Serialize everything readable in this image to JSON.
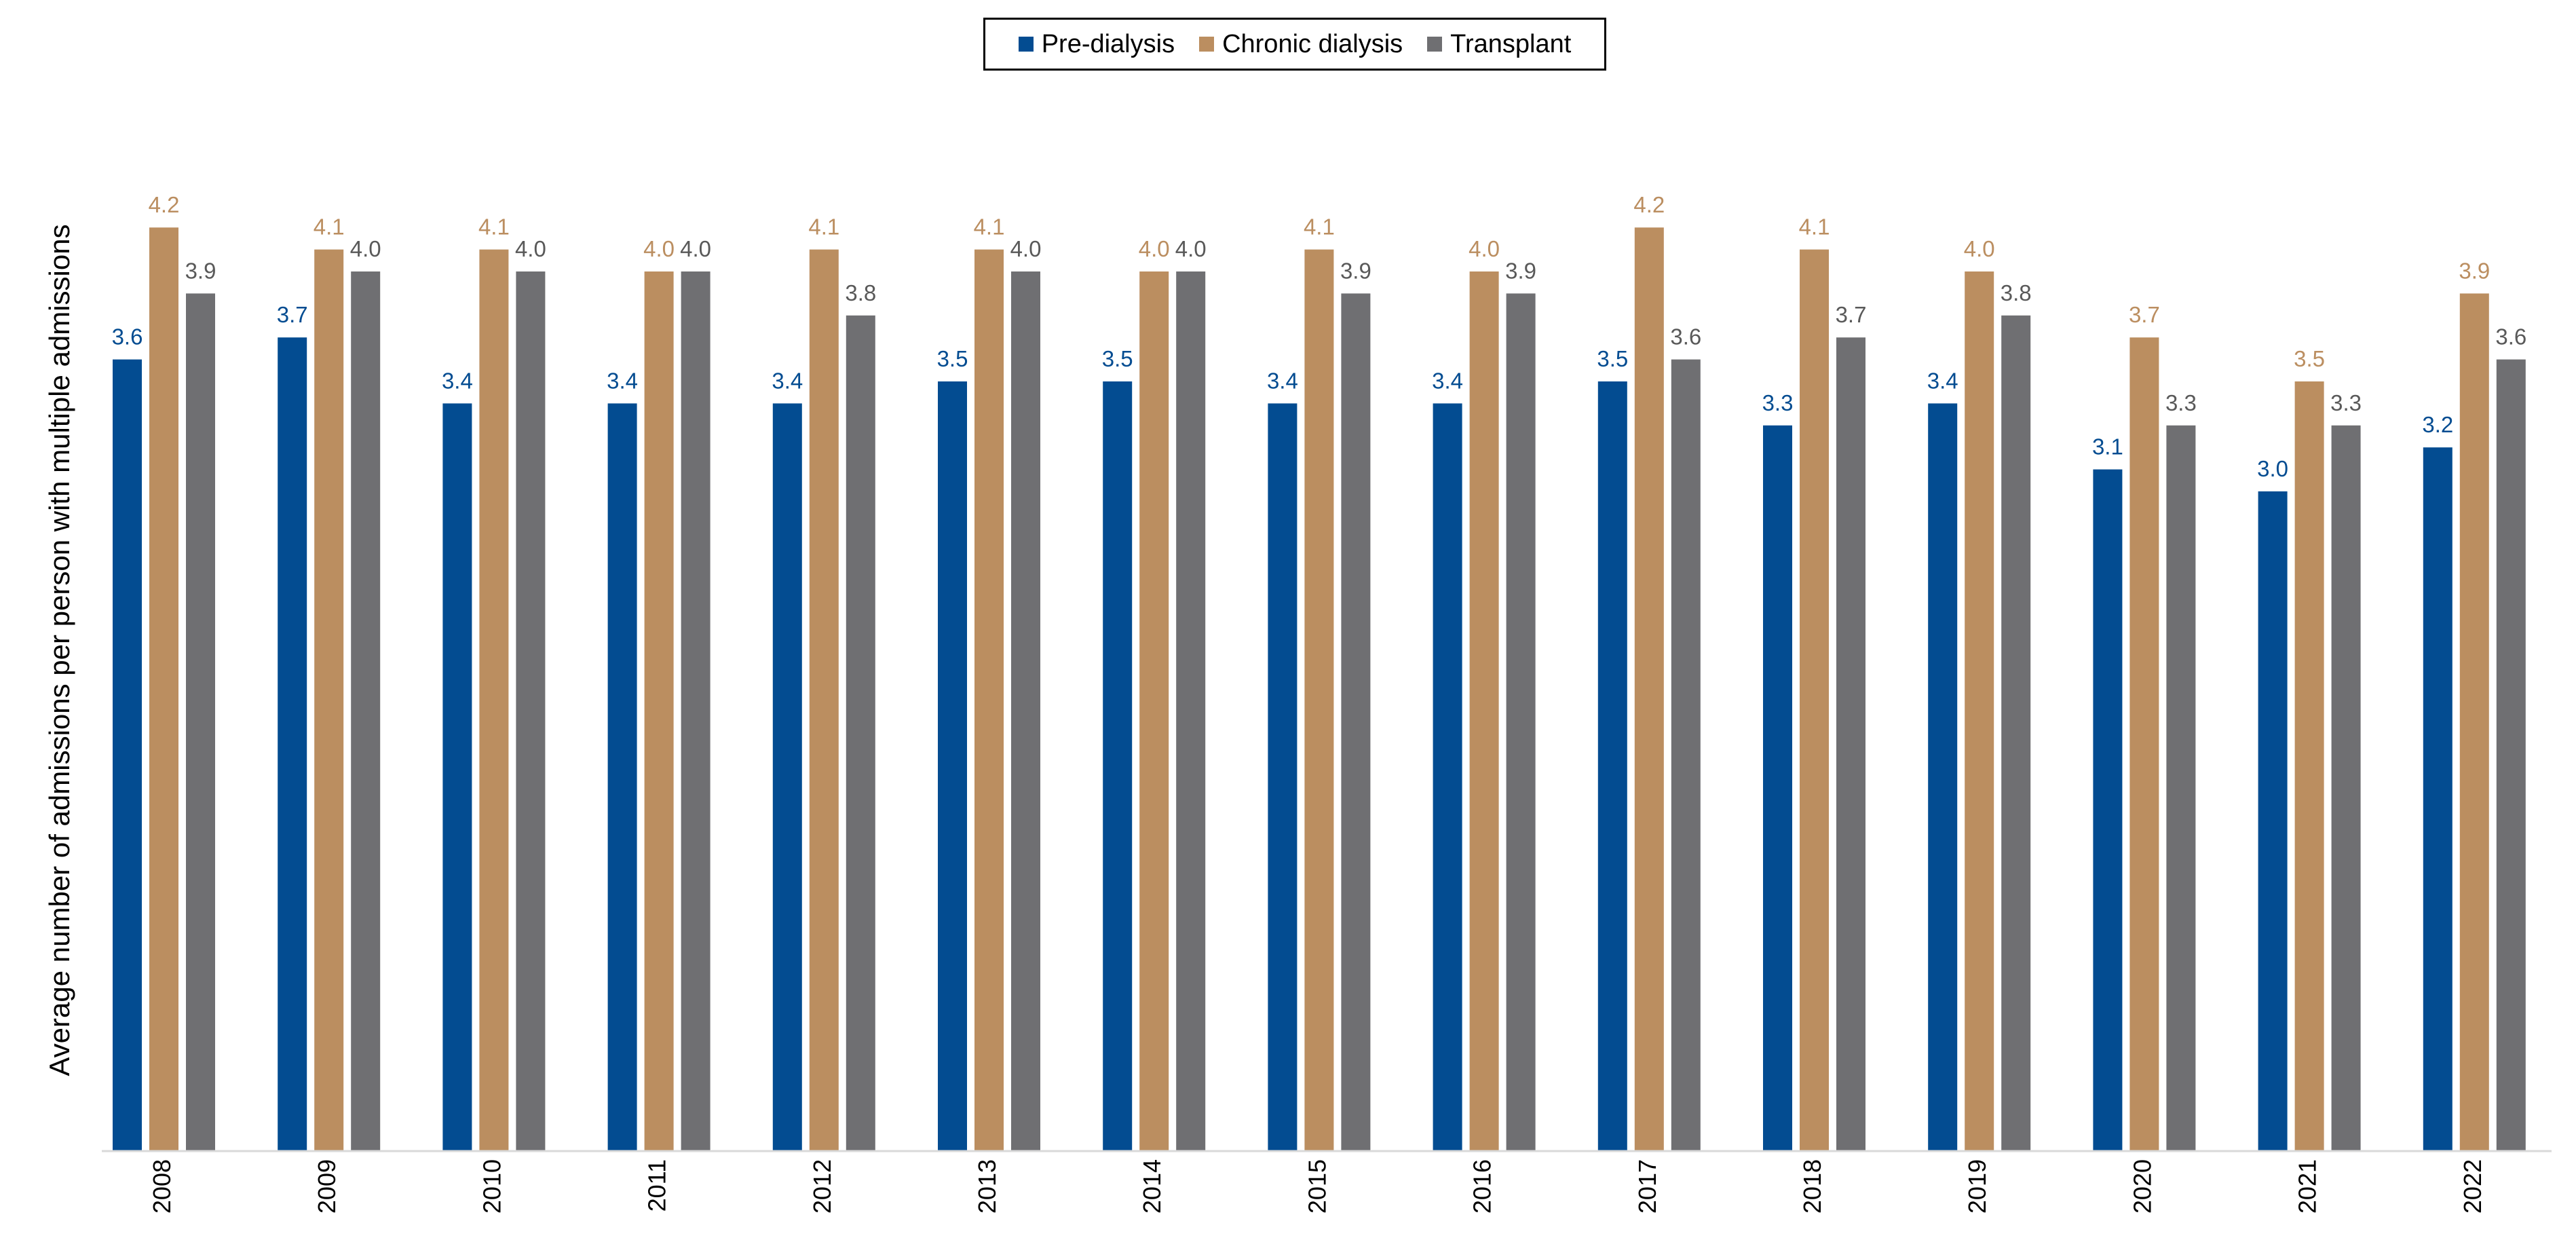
{
  "chart_data": {
    "type": "bar",
    "title": "",
    "xlabel": "",
    "ylabel": "Average number of admissions per person with multiple admissions",
    "ylim": [
      0,
      4.4
    ],
    "grid": false,
    "legend_position": "top-center",
    "categories": [
      "2008",
      "2009",
      "2010",
      "2011",
      "2012",
      "2013",
      "2014",
      "2015",
      "2016",
      "2017",
      "2018",
      "2019",
      "2020",
      "2021",
      "2022"
    ],
    "series": [
      {
        "name": "Pre-dialysis",
        "color": "#034c91",
        "label_color": "#034c91",
        "values": [
          3.6,
          3.7,
          3.4,
          3.4,
          3.4,
          3.5,
          3.5,
          3.4,
          3.4,
          3.5,
          3.3,
          3.4,
          3.1,
          3.0,
          3.2
        ],
        "labels": [
          "3.6",
          "3.7",
          "3.4",
          "3.4",
          "3.4",
          "3.5",
          "3.5",
          "3.4",
          "3.4",
          "3.5",
          "3.3",
          "3.4",
          "3.1",
          "3.0",
          "3.2"
        ]
      },
      {
        "name": "Chronic dialysis",
        "color": "#bb8e60",
        "label_color": "#bb8e60",
        "values": [
          4.2,
          4.1,
          4.1,
          4.0,
          4.1,
          4.1,
          4.0,
          4.1,
          4.0,
          4.2,
          4.1,
          4.0,
          3.7,
          3.5,
          3.9
        ],
        "labels": [
          "4.2",
          "4.1",
          "4.1",
          "4.0",
          "4.1",
          "4.1",
          "4.0",
          "4.1",
          "4.0",
          "4.2",
          "4.1",
          "4.0",
          "3.7",
          "3.5",
          "3.9"
        ]
      },
      {
        "name": "Transplant",
        "color": "#6f6f72",
        "label_color": "#595959",
        "values": [
          3.9,
          4.0,
          4.0,
          4.0,
          3.8,
          4.0,
          4.0,
          3.9,
          3.9,
          3.6,
          3.7,
          3.8,
          3.3,
          3.3,
          3.6
        ],
        "labels": [
          "3.9",
          "4.0",
          "4.0",
          "4.0",
          "3.8",
          "4.0",
          "4.0",
          "3.9",
          "3.9",
          "3.6",
          "3.7",
          "3.8",
          "3.3",
          "3.3",
          "3.6"
        ]
      }
    ]
  }
}
